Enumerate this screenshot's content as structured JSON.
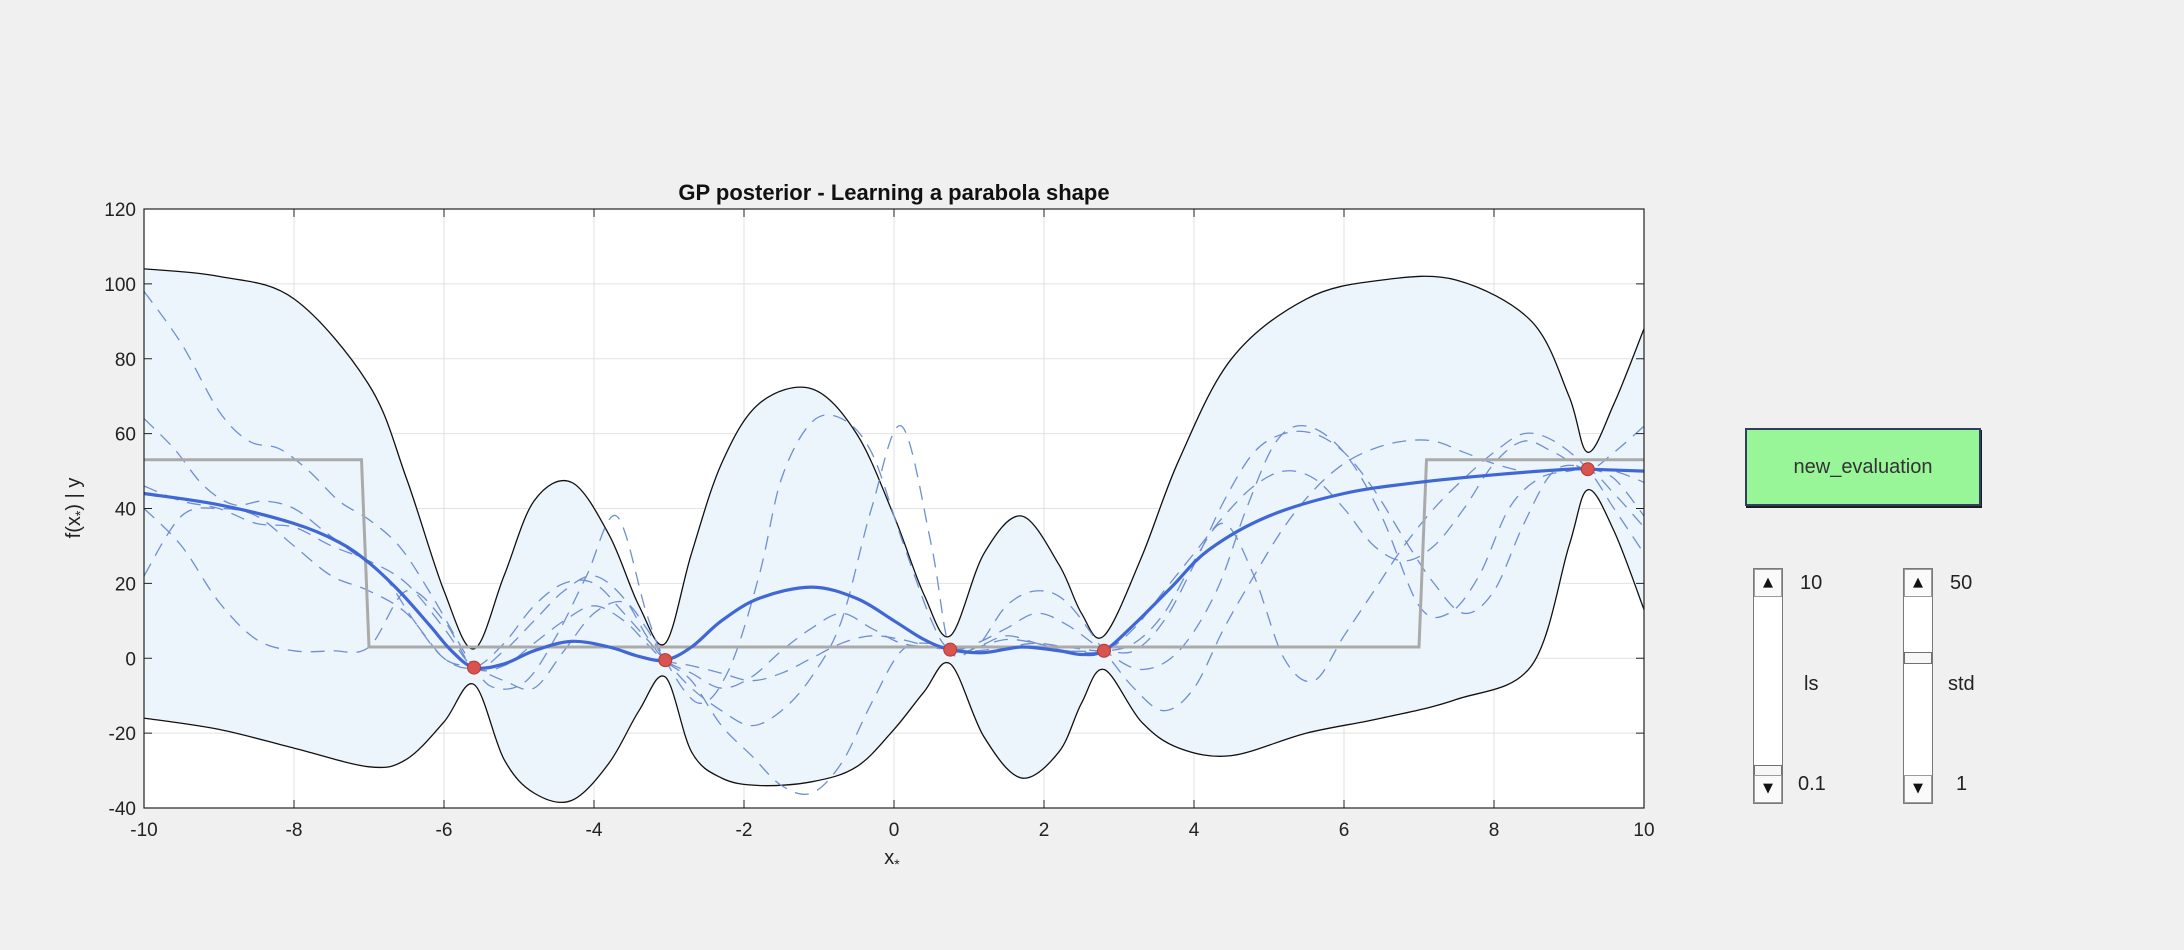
{
  "chart_data": {
    "type": "line",
    "title": "GP posterior - Learning a parabola shape",
    "xlabel": "x",
    "xlabel_subscript": "*",
    "ylabel": "f(x",
    "ylabel_subscript": "*",
    "ylabel_suffix": ") | y",
    "xlim": [
      -10,
      10
    ],
    "ylim": [
      -40,
      120
    ],
    "xticks": [
      -10,
      -8,
      -6,
      -4,
      -2,
      0,
      2,
      4,
      6,
      8,
      10
    ],
    "yticks": [
      -40,
      -20,
      0,
      20,
      40,
      60,
      80,
      100,
      120
    ],
    "grid": true,
    "observations": [
      {
        "x": -5.6,
        "y": -2.5
      },
      {
        "x": -3.05,
        "y": -0.5
      },
      {
        "x": 0.75,
        "y": 2.3
      },
      {
        "x": 2.8,
        "y": 2.0
      },
      {
        "x": 9.25,
        "y": 50.5
      }
    ],
    "mean": {
      "x": [
        -10,
        -9,
        -8,
        -7.4,
        -7,
        -6.6,
        -6.2,
        -5.9,
        -5.6,
        -5.2,
        -4.8,
        -4.3,
        -3.8,
        -3.4,
        -3.05,
        -2.7,
        -2.3,
        -1.8,
        -1.1,
        -0.5,
        0,
        0.4,
        0.75,
        1.2,
        1.7,
        2.2,
        2.5,
        2.8,
        3.2,
        3.7,
        4.2,
        5,
        6,
        7,
        8,
        9,
        9.25,
        10
      ],
      "y": [
        44,
        41,
        36,
        31,
        25.5,
        18,
        9,
        2,
        -2.5,
        -1.5,
        2,
        4.5,
        3,
        0.5,
        -0.5,
        3,
        10,
        16,
        19,
        16,
        10,
        5,
        2.3,
        1.5,
        3,
        2,
        1,
        2,
        9,
        19,
        29,
        38,
        44,
        47,
        49,
        50.5,
        50.5,
        50
      ]
    },
    "upper": {
      "x": [
        -10,
        -9,
        -8,
        -7,
        -6.5,
        -6,
        -5.6,
        -5.2,
        -4.8,
        -4.3,
        -3.8,
        -3.4,
        -3.05,
        -2.7,
        -2.3,
        -1.8,
        -1.1,
        -0.5,
        0,
        0.4,
        0.75,
        1.2,
        1.7,
        2.2,
        2.5,
        2.8,
        3.3,
        3.8,
        4.5,
        5.5,
        6.5,
        7.5,
        8.5,
        9,
        9.25,
        9.6,
        10
      ],
      "y": [
        104,
        102,
        96,
        73,
        48,
        18,
        2.5,
        22,
        42,
        47,
        33,
        14,
        4,
        28,
        52,
        68,
        72,
        60,
        38,
        17,
        6,
        28,
        38,
        25,
        12,
        6,
        27,
        53,
        80,
        96,
        101,
        101,
        90,
        70,
        55,
        68,
        88
      ]
    },
    "lower": {
      "x": [
        -10,
        -9,
        -8,
        -7,
        -6.5,
        -6,
        -5.6,
        -5.2,
        -4.8,
        -4.3,
        -3.8,
        -3.4,
        -3.05,
        -2.7,
        -2.3,
        -1.8,
        -1.1,
        -0.5,
        0,
        0.4,
        0.75,
        1.2,
        1.7,
        2.2,
        2.5,
        2.8,
        3.3,
        3.8,
        4.5,
        5.5,
        6.5,
        7.5,
        8.5,
        9,
        9.25,
        9.6,
        10
      ],
      "y": [
        -16,
        -19,
        -24,
        -29,
        -27,
        -17,
        -7,
        -27,
        -36,
        -38,
        -28,
        -14,
        -5,
        -25,
        -32,
        -34,
        -33,
        -29,
        -19,
        -9,
        -1.5,
        -21,
        -32,
        -25,
        -12,
        -3,
        -17,
        -24,
        -26,
        -20,
        -16,
        -11,
        -2,
        30,
        45,
        34,
        13
      ]
    },
    "step_function": {
      "x": [
        -10,
        -7.1,
        -7.0,
        7.0,
        7.1,
        10
      ],
      "y": [
        53,
        53,
        3,
        3,
        53,
        53
      ]
    },
    "samples": [
      {
        "x": [
          -10,
          -9.5,
          -9,
          -8.6,
          -8.2,
          -7.8,
          -7.4,
          -7,
          -6.6,
          -6.2,
          -5.6,
          -5.3,
          -4.9,
          -4.5,
          -4.1,
          -3.7,
          -3.3,
          -3.05,
          -2.6,
          -2.2,
          -1.8,
          -1.5,
          -1.1,
          -0.7,
          -0.3,
          0.1,
          0.5,
          0.75,
          1.1,
          1.5,
          1.9,
          2.3,
          2.8,
          3.3,
          3.8,
          4.3,
          4.7,
          5.1,
          5.5,
          6,
          6.5,
          7,
          7.4,
          7.8,
          8.2,
          8.6,
          9,
          9.25,
          9.6,
          10
        ],
        "y": [
          98,
          84,
          66,
          58,
          56,
          50,
          42,
          37,
          30,
          18,
          -2.5,
          -8,
          -6,
          6,
          22,
          38,
          12,
          -0.5,
          -12,
          -3,
          22,
          48,
          63,
          64,
          55,
          32,
          10,
          2.3,
          4,
          8,
          12,
          9,
          2,
          -3,
          2,
          18,
          40,
          58,
          62,
          55,
          38,
          14,
          12,
          22,
          40,
          48,
          50,
          50.5,
          48,
          38
        ]
      },
      {
        "x": [
          -10,
          -9.6,
          -9.2,
          -8.8,
          -8.4,
          -8,
          -7.6,
          -7.2,
          -6.8,
          -6.4,
          -6,
          -5.6,
          -5.2,
          -4.8,
          -4.4,
          -4,
          -3.6,
          -3.05,
          -2.7,
          -2.3,
          -1.9,
          -1.5,
          -1.1,
          -0.7,
          -0.3,
          0.1,
          0.5,
          0.75,
          1.1,
          1.5,
          1.9,
          2.3,
          2.8,
          3.2,
          3.6,
          4,
          4.4,
          4.8,
          5.2,
          5.6,
          6,
          6.4,
          6.8,
          7.2,
          7.6,
          8,
          8.4,
          8.8,
          9.25,
          9.6,
          10
        ],
        "y": [
          64,
          56,
          46,
          41,
          42,
          40,
          34,
          28,
          22,
          10,
          0,
          -2.5,
          4,
          14,
          20,
          20,
          12,
          -0.5,
          -8,
          -14,
          -18,
          -14,
          -5,
          10,
          40,
          62,
          30,
          2.3,
          3,
          6,
          4,
          2,
          2,
          2,
          10,
          25,
          42,
          55,
          60,
          60,
          55,
          45,
          32,
          20,
          12,
          18,
          36,
          50,
          50.5,
          44,
          35
        ]
      },
      {
        "x": [
          -10,
          -9.5,
          -9,
          -8.5,
          -8,
          -7.5,
          -7,
          -6.5,
          -6,
          -5.6,
          -5.2,
          -4.8,
          -4.4,
          -4,
          -3.6,
          -3.3,
          -3.05,
          -2.7,
          -2.3,
          -1.9,
          -1.5,
          -1.1,
          -0.7,
          -0.3,
          0.1,
          0.5,
          0.75,
          1.1,
          1.5,
          1.9,
          2.3,
          2.8,
          3.2,
          3.6,
          4,
          4.4,
          4.8,
          5.2,
          5.6,
          6,
          6.4,
          6.8,
          7.2,
          7.6,
          8,
          8.4,
          8.8,
          9.25,
          9.6,
          10
        ],
        "y": [
          22,
          38,
          40,
          38,
          30,
          22,
          18,
          12,
          0,
          -2.5,
          -6,
          -8,
          2,
          12,
          15,
          8,
          -0.5,
          -6,
          -18,
          -26,
          -34,
          -36,
          -28,
          -12,
          2,
          4,
          2.3,
          3,
          14,
          18,
          15,
          2,
          -8,
          -14,
          -8,
          8,
          22,
          35,
          45,
          52,
          56,
          58,
          58,
          55,
          52,
          50,
          50,
          50.5,
          50,
          47
        ]
      },
      {
        "x": [
          -10,
          -9.5,
          -9,
          -8.5,
          -8,
          -7.5,
          -7,
          -6.5,
          -6,
          -5.6,
          -5.2,
          -4.8,
          -4.4,
          -4,
          -3.6,
          -3.3,
          -3.05,
          -2.7,
          -2.3,
          -1.9,
          -1.5,
          -1.1,
          -0.7,
          -0.3,
          0.1,
          0.5,
          0.75,
          1.1,
          1.5,
          1.9,
          2.3,
          2.8,
          3.2,
          3.6,
          4,
          4.4,
          4.8,
          5.2,
          5.6,
          6,
          6.4,
          6.8,
          7.2,
          7.6,
          8,
          8.4,
          8.8,
          9.25,
          9.6,
          10
        ],
        "y": [
          40,
          30,
          15,
          5,
          2,
          2,
          3,
          18,
          10,
          -2.5,
          2,
          10,
          18,
          22,
          16,
          6,
          -0.5,
          -4,
          -8,
          -5,
          2,
          8,
          12,
          8,
          4,
          3,
          2.3,
          2,
          3,
          4,
          3,
          2,
          4,
          12,
          26,
          36,
          22,
          0,
          -6,
          6,
          18,
          30,
          40,
          48,
          55,
          60,
          58,
          50.5,
          40,
          28
        ]
      },
      {
        "x": [
          -10,
          -9.5,
          -9,
          -8.5,
          -8,
          -7.5,
          -7,
          -6.5,
          -6,
          -5.6,
          -5.2,
          -4.8,
          -4.4,
          -4,
          -3.6,
          -3.3,
          -3.05,
          -2.7,
          -2.3,
          -1.9,
          -1.5,
          -1.1,
          -0.7,
          -0.3,
          0.1,
          0.5,
          0.75,
          1.1,
          1.5,
          1.9,
          2.3,
          2.8,
          3.2,
          3.6,
          4,
          4.4,
          4.8,
          5.2,
          5.6,
          6,
          6.4,
          6.8,
          7.2,
          7.6,
          8,
          8.4,
          8.8,
          9.25,
          9.6,
          10
        ],
        "y": [
          46,
          42,
          40,
          36,
          35,
          30,
          26,
          20,
          8,
          -2.5,
          -2,
          4,
          10,
          14,
          10,
          4,
          -0.5,
          -2,
          -4,
          -6,
          -4,
          0,
          4,
          6,
          5,
          3,
          2.3,
          3,
          5,
          4,
          2,
          2,
          8,
          18,
          28,
          38,
          46,
          50,
          48,
          40,
          30,
          26,
          30,
          40,
          52,
          58,
          55,
          50.5,
          55,
          62
        ]
      }
    ]
  },
  "controls": {
    "new_evaluation_label": "new_evaluation",
    "ls_slider": {
      "label": "ls",
      "max_label": "10",
      "min_label": "0.1",
      "value": 0.1,
      "min": 0.1,
      "max": 10
    },
    "std_slider": {
      "label": "std",
      "max_label": "50",
      "min_label": "1",
      "value": 34,
      "min": 1,
      "max": 50
    },
    "arrow_up": "▲",
    "arrow_down": "▼"
  }
}
